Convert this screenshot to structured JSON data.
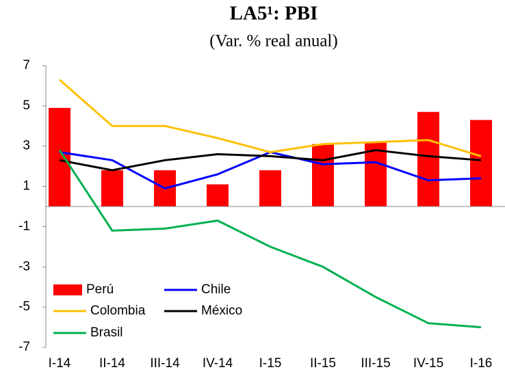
{
  "chart_data": {
    "type": "combo",
    "title": "LA5¹: PBI",
    "subtitle": "(Var. % real anual)",
    "categories": [
      "I-14",
      "II-14",
      "III-14",
      "IV-14",
      "I-15",
      "II-15",
      "III-15",
      "IV-15",
      "I-16"
    ],
    "series": [
      {
        "name": "Perú",
        "type": "bar",
        "color": "#ff0000",
        "values": [
          4.9,
          1.8,
          1.8,
          1.1,
          1.8,
          3.1,
          3.2,
          4.7,
          4.3
        ]
      },
      {
        "name": "Chile",
        "type": "line",
        "color": "#0000ff",
        "values": [
          2.7,
          2.3,
          0.9,
          1.6,
          2.7,
          2.1,
          2.2,
          1.3,
          1.4
        ]
      },
      {
        "name": "Colombia",
        "type": "line",
        "color": "#ffc000",
        "values": [
          6.3,
          4.0,
          4.0,
          3.4,
          2.7,
          3.1,
          3.2,
          3.3,
          2.5
        ]
      },
      {
        "name": "México",
        "type": "line",
        "color": "#000000",
        "values": [
          2.3,
          1.8,
          2.3,
          2.6,
          2.5,
          2.3,
          2.8,
          2.5,
          2.3
        ]
      },
      {
        "name": "Brasil",
        "type": "line",
        "color": "#00b050",
        "values": [
          2.8,
          -1.2,
          -1.1,
          -0.7,
          -2.0,
          -3.0,
          -4.5,
          -5.8,
          -6.0
        ]
      }
    ],
    "ylim": [
      -7,
      7
    ],
    "yticks": [
      -7,
      -5,
      -3,
      -1,
      1,
      3,
      5,
      7
    ],
    "grid": false,
    "legend": "lower left"
  }
}
